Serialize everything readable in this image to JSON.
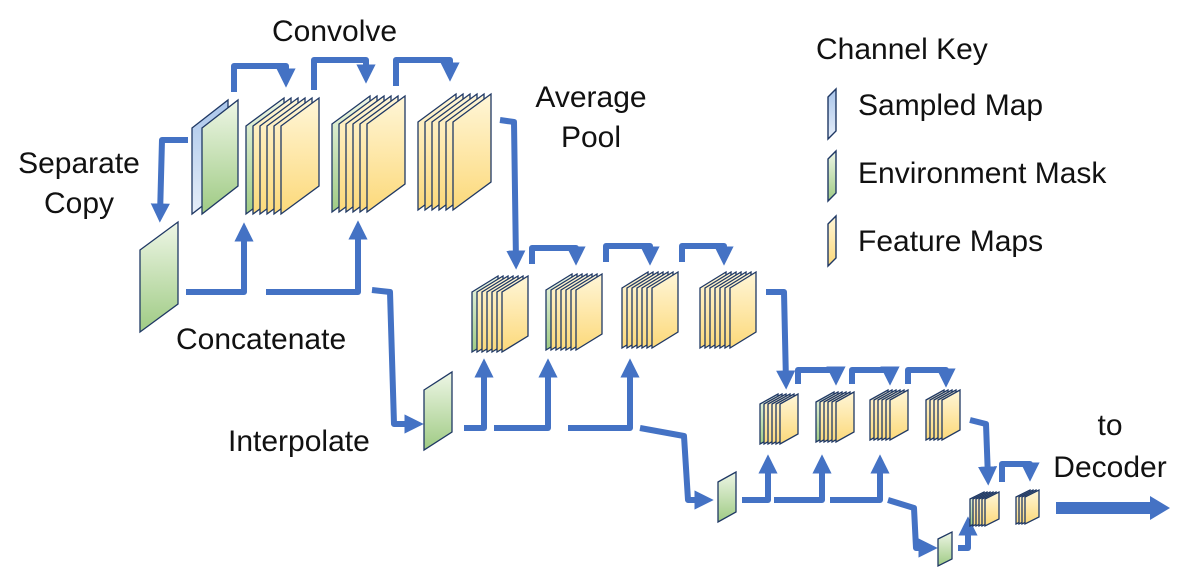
{
  "labels": {
    "convolve": "Convolve",
    "average_pool_line1": "Average",
    "average_pool_line2": "Pool",
    "separate_copy_line1": "Separate",
    "separate_copy_line2": "Copy",
    "concatenate": "Concatenate",
    "interpolate": "Interpolate",
    "to_decoder_line1": "to",
    "to_decoder_line2": "Decoder"
  },
  "legend": {
    "title": "Channel Key",
    "items": [
      {
        "label": "Sampled Map",
        "color": "#bdd3ee"
      },
      {
        "label": "Environment Mask",
        "color": "#c8e2b4"
      },
      {
        "label": "Feature Maps",
        "color": "#fde9a6"
      }
    ]
  },
  "colors": {
    "arrow": "#4472c4",
    "stroke": "#1f3864",
    "sampled_map": "#bdd3ee",
    "environment_mask": "#c8e2b4",
    "feature_map": "#fde9a6"
  }
}
